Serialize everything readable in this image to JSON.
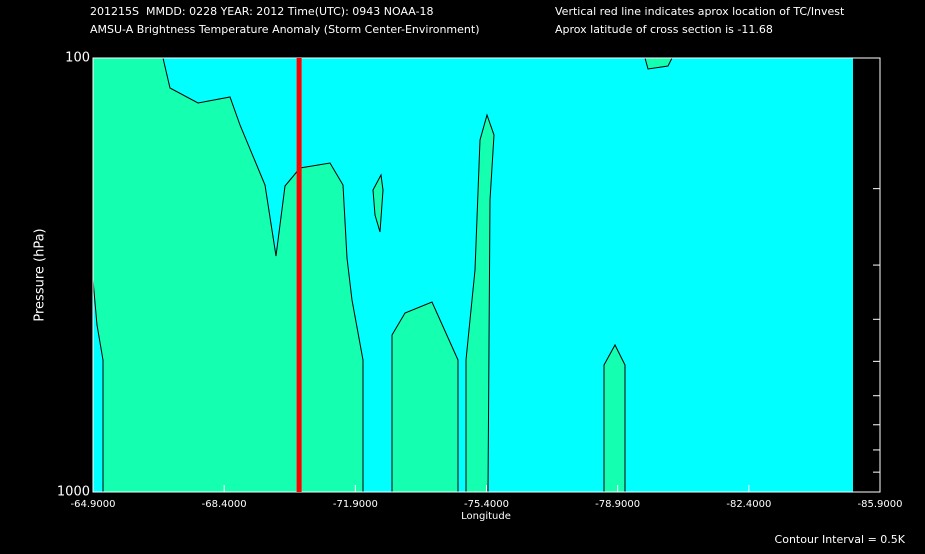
{
  "chart_data": {
    "type": "contour",
    "title_lines": [
      "201215S  MMDD: 0228 YEAR: 2012 Time(UTC): 0943 NOAA-18",
      "AMSU-A Brightness Temperature Anomaly (Storm Center-Environment)"
    ],
    "annotations": [
      "Vertical red line indicates aprox location of TC/Invest",
      "Aprox latitude of cross section is -11.68",
      "Contour Interval = 0.5K"
    ],
    "xlabel": "Longitude",
    "ylabel": "Pressure (hPa)",
    "xlim": [
      -64.9,
      -85.9
    ],
    "xticks": [
      {
        "value": -64.9,
        "label": "-64.9000"
      },
      {
        "value": -68.4,
        "label": "-68.4000"
      },
      {
        "value": -71.9,
        "label": "-71.9000"
      },
      {
        "value": -75.4,
        "label": "-75.4000"
      },
      {
        "value": -78.9,
        "label": "-78.9000"
      },
      {
        "value": -82.4,
        "label": "-82.4000"
      },
      {
        "value": -85.9,
        "label": "-85.9000"
      }
    ],
    "ylim": [
      1000,
      100
    ],
    "ylog": true,
    "yticks": [
      100,
      1000
    ],
    "minor_yticks": [
      200,
      300,
      400,
      500,
      600,
      700,
      800,
      900
    ],
    "marker_x": -70.4,
    "marker_color": "#ff0000"
  }
}
